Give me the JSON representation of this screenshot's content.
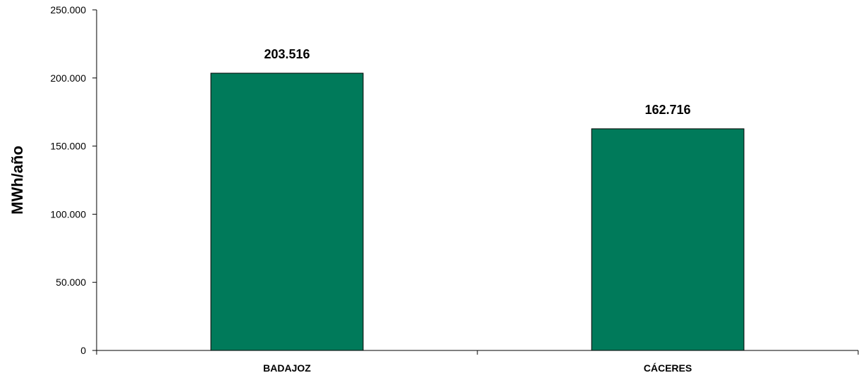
{
  "chart_data": {
    "type": "bar",
    "title": "",
    "xlabel": "",
    "ylabel": "MWh/año",
    "categories": [
      "BADAJOZ",
      "CÁCERES"
    ],
    "values": [
      203516,
      162716
    ],
    "value_labels": [
      "203.516",
      "162.716"
    ],
    "ylim": [
      0,
      250000
    ],
    "yticks": [
      0,
      50000,
      100000,
      150000,
      200000,
      250000
    ],
    "ytick_labels": [
      "0",
      "50.000",
      "100.000",
      "150.000",
      "200.000",
      "250.000"
    ],
    "grid": false,
    "legend": "none",
    "bar_color": "#007a5a",
    "bar_edge_color": "#000000"
  }
}
